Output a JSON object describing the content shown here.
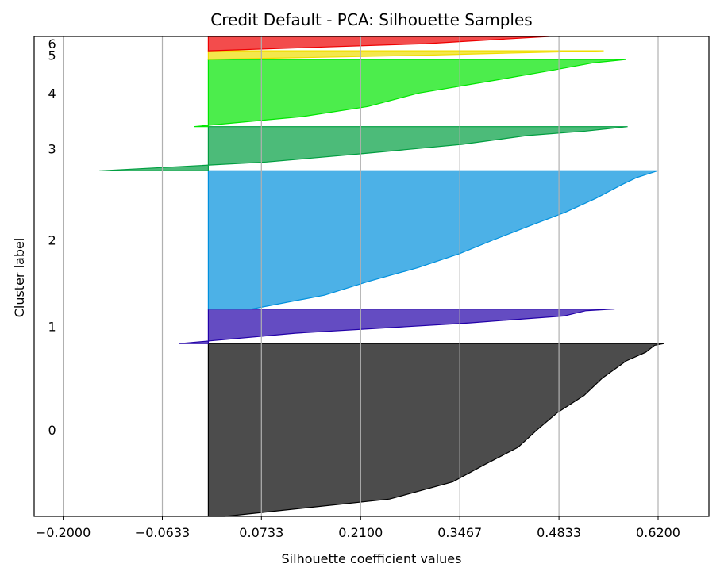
{
  "chart_data": {
    "type": "area",
    "title": "Credit Default - PCA: Silhouette Samples",
    "xlabel": "Silhouette coefficient values",
    "ylabel": "Cluster label",
    "xlim": [
      -0.24,
      0.69
    ],
    "ylim": [
      0,
      1000
    ],
    "xticks": [
      {
        "value": -0.2,
        "label": "−0.2000"
      },
      {
        "value": -0.0633,
        "label": "−0.0633"
      },
      {
        "value": 0.0733,
        "label": "0.0733"
      },
      {
        "value": 0.21,
        "label": "0.2100"
      },
      {
        "value": 0.3467,
        "label": "0.3467"
      },
      {
        "value": 0.4833,
        "label": "0.4833"
      },
      {
        "value": 0.62,
        "label": "0.6200"
      }
    ],
    "grid": "x",
    "clusters": [
      {
        "label": "0",
        "color": "#000000",
        "y_start": 0,
        "y_end": 360,
        "profile": [
          [
            0,
            0.023
          ],
          [
            0.1,
            0.25
          ],
          [
            0.2,
            0.337
          ],
          [
            0.3,
            0.381
          ],
          [
            0.4,
            0.427
          ],
          [
            0.5,
            0.453
          ],
          [
            0.6,
            0.481
          ],
          [
            0.7,
            0.518
          ],
          [
            0.8,
            0.543
          ],
          [
            0.9,
            0.576
          ],
          [
            0.95,
            0.603
          ],
          [
            0.99,
            0.615
          ],
          [
            1.0,
            0.628
          ]
        ]
      },
      {
        "label": "1",
        "color": "#2200a8",
        "y_start": 360,
        "y_end": 432,
        "profile": [
          [
            0,
            -0.04
          ],
          [
            0.3,
            0.12
          ],
          [
            0.6,
            0.36
          ],
          [
            0.8,
            0.49
          ],
          [
            0.95,
            0.52
          ],
          [
            1.0,
            0.56
          ]
        ]
      },
      {
        "label": "2",
        "color": "#0090dd",
        "y_start": 432,
        "y_end": 720,
        "profile": [
          [
            0,
            0.06
          ],
          [
            0.1,
            0.16
          ],
          [
            0.2,
            0.221
          ],
          [
            0.3,
            0.289
          ],
          [
            0.4,
            0.346
          ],
          [
            0.5,
            0.393
          ],
          [
            0.6,
            0.442
          ],
          [
            0.7,
            0.492
          ],
          [
            0.8,
            0.534
          ],
          [
            0.9,
            0.57
          ],
          [
            0.95,
            0.59
          ],
          [
            1.0,
            0.619
          ]
        ]
      },
      {
        "label": "3",
        "color": "#009e40",
        "y_start": 720,
        "y_end": 812,
        "profile": [
          [
            0,
            -0.15
          ],
          [
            0.2,
            0.08
          ],
          [
            0.4,
            0.22
          ],
          [
            0.6,
            0.35
          ],
          [
            0.8,
            0.44
          ],
          [
            0.9,
            0.52
          ],
          [
            1.0,
            0.578
          ]
        ]
      },
      {
        "label": "4",
        "color": "#00e600",
        "y_start": 812,
        "y_end": 952,
        "profile": [
          [
            0,
            -0.02
          ],
          [
            0.15,
            0.13
          ],
          [
            0.3,
            0.22
          ],
          [
            0.5,
            0.29
          ],
          [
            0.7,
            0.4
          ],
          [
            0.85,
            0.48
          ],
          [
            0.95,
            0.53
          ],
          [
            1.0,
            0.576
          ]
        ]
      },
      {
        "label": "5",
        "color": "#f0dd00",
        "y_start": 952,
        "y_end": 970,
        "profile": [
          [
            0,
            0.0
          ],
          [
            0.5,
            0.3
          ],
          [
            1.0,
            0.545
          ]
        ]
      },
      {
        "label": "6",
        "color": "#ee0000",
        "y_start": 970,
        "y_end": 1000,
        "profile": [
          [
            0,
            0.0
          ],
          [
            0.5,
            0.3
          ],
          [
            1.0,
            0.47
          ]
        ]
      }
    ]
  }
}
